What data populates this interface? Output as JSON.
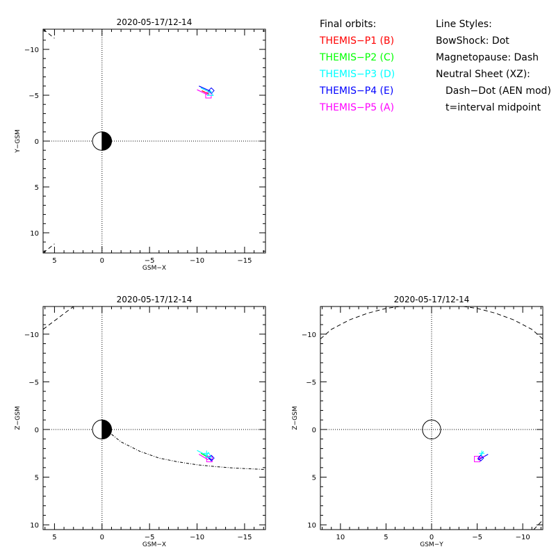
{
  "colors": {
    "P1": "#ff0000",
    "P2": "#00ff00",
    "P3": "#00ffff",
    "P4": "#0000ff",
    "P5": "#ff00ff",
    "axis": "#000000"
  },
  "legend": {
    "orbits_title": "Final orbits:",
    "orbits": [
      {
        "label": "THEMIS−P1 (B)",
        "probe": "P1"
      },
      {
        "label": "THEMIS−P2 (C)",
        "probe": "P2"
      },
      {
        "label": "THEMIS−P3 (D)",
        "probe": "P3"
      },
      {
        "label": "THEMIS−P4 (E)",
        "probe": "P4"
      },
      {
        "label": "THEMIS−P5 (A)",
        "probe": "P5"
      }
    ],
    "styles_title": "Line Styles:",
    "styles": [
      "BowShock: Dot",
      "Magnetopause: Dash",
      "Neutral Sheet (XZ):",
      "Dash−Dot (AEN mod)",
      "t=interval midpoint"
    ]
  },
  "chart_data": [
    {
      "type": "line",
      "id": "xy",
      "title": "2020-05-17/12-14",
      "xlabel": "GSM−X",
      "ylabel": "Y−GSM",
      "xlim": [
        6.2,
        -17.2
      ],
      "ylim": [
        -12.2,
        12.2
      ],
      "xticks": [
        5,
        0,
        -5,
        -10,
        -15
      ],
      "xticklabels": [
        "5",
        "0",
        "−5",
        "−10",
        "−15"
      ],
      "yticks": [
        -10,
        -5,
        0,
        5,
        10
      ],
      "yticklabels": [
        "−10",
        "−5",
        "0",
        "5",
        "10"
      ],
      "earth": "half-filled",
      "magnetopause": [
        {
          "x": [
            6.2,
            5.0
          ],
          "y": [
            -12.2,
            -11.2
          ]
        },
        {
          "x": [
            6.2,
            5.0
          ],
          "y": [
            12.2,
            11.2
          ]
        }
      ],
      "series": [
        {
          "probe": "P4",
          "x": [
            -10.2,
            -11.5
          ],
          "y": [
            -6.0,
            -5.4
          ]
        },
        {
          "probe": "P3",
          "x": [
            -10.4,
            -11.4
          ],
          "y": [
            -5.8,
            -5.3
          ]
        },
        {
          "probe": "P5",
          "x": [
            -10.0,
            -11.2
          ],
          "y": [
            -5.6,
            -5.0
          ]
        },
        {
          "probe": "P1",
          "x": [
            -10.5,
            -11.3
          ],
          "y": [
            -5.5,
            -5.1
          ]
        }
      ],
      "markers": [
        {
          "probe": "P5",
          "shape": "square",
          "x": -11.2,
          "y": -5.0
        },
        {
          "probe": "P4",
          "shape": "diamond",
          "x": -11.5,
          "y": -5.5
        },
        {
          "probe": "P3",
          "shape": "triangle",
          "x": -11.4,
          "y": -5.2
        }
      ]
    },
    {
      "type": "line",
      "id": "xz",
      "title": "2020-05-17/12-14",
      "xlabel": "GSM−X",
      "ylabel": "Z−GSM",
      "xlim": [
        6.2,
        -17.2
      ],
      "ylim": [
        -12.9,
        10.5
      ],
      "xticks": [
        5,
        0,
        -5,
        -10,
        -15
      ],
      "xticklabels": [
        "5",
        "0",
        "−5",
        "−10",
        "−15"
      ],
      "yticks": [
        -10,
        -5,
        0,
        5,
        10
      ],
      "yticklabels": [
        "−10",
        "−5",
        "0",
        "5",
        "10"
      ],
      "earth": "half-filled",
      "neutral_sheet": {
        "x": [
          -1,
          -2,
          -4,
          -6,
          -8,
          -10,
          -12,
          -14,
          -17.2
        ],
        "y": [
          0.5,
          1.3,
          2.3,
          3.0,
          3.4,
          3.7,
          3.9,
          4.05,
          4.2
        ]
      },
      "magnetopause": [
        {
          "x": [
            6.2,
            3.0
          ],
          "y": [
            -10.5,
            -12.9
          ]
        }
      ],
      "series": [
        {
          "probe": "P4",
          "x": [
            -10.6,
            -11.6
          ],
          "y": [
            2.6,
            3.2
          ]
        },
        {
          "probe": "P2",
          "x": [
            -10.4,
            -11.3
          ],
          "y": [
            2.5,
            3.0
          ]
        },
        {
          "probe": "P3",
          "x": [
            -10.0,
            -11.2
          ],
          "y": [
            2.2,
            2.8
          ]
        },
        {
          "probe": "P5",
          "x": [
            -10.2,
            -11.2
          ],
          "y": [
            2.6,
            3.2
          ]
        }
      ],
      "markers": [
        {
          "probe": "P5",
          "shape": "square",
          "x": -11.3,
          "y": 3.1
        },
        {
          "probe": "P4",
          "shape": "diamond",
          "x": -11.5,
          "y": 3.0
        },
        {
          "probe": "P3",
          "shape": "triangle",
          "x": -11.2,
          "y": 2.7
        },
        {
          "probe": "P3",
          "shape": "plus",
          "x": -11.0,
          "y": 2.5
        }
      ]
    },
    {
      "type": "line",
      "id": "yz",
      "title": "2020-05-17/12-14",
      "xlabel": "GSM−Y",
      "ylabel": "Z−GSM",
      "xlim": [
        12.2,
        -12.2
      ],
      "ylim": [
        -12.9,
        10.5
      ],
      "xticks": [
        10,
        5,
        0,
        -5,
        -10
      ],
      "xticklabels": [
        "10",
        "5",
        "0",
        "−5",
        "−10"
      ],
      "yticks": [
        -10,
        -5,
        0,
        5,
        10
      ],
      "yticklabels": [
        "−10",
        "−5",
        "0",
        "5",
        "10"
      ],
      "earth": "outline",
      "magnetopause": [
        {
          "x": [
            12.2,
            11.0,
            9.0,
            7.0,
            5.0,
            3.5
          ],
          "y": [
            -9.5,
            -10.5,
            -11.5,
            -12.2,
            -12.7,
            -12.9
          ]
        },
        {
          "x": [
            -12.2,
            -11.0,
            -9.0,
            -7.0,
            -5.0,
            -3.5
          ],
          "y": [
            -9.5,
            -10.5,
            -11.5,
            -12.2,
            -12.7,
            -12.9
          ]
        },
        {
          "x": [
            -11.2,
            -12.2
          ],
          "y": [
            10.5,
            9.5
          ]
        }
      ],
      "series": [
        {
          "probe": "P4",
          "x": [
            -5.1,
            -6.2
          ],
          "y": [
            3.2,
            2.6
          ]
        },
        {
          "probe": "P3",
          "x": [
            -5.2,
            -5.7
          ],
          "y": [
            2.9,
            2.3
          ]
        },
        {
          "probe": "P5",
          "x": [
            -5.0,
            -5.8
          ],
          "y": [
            3.1,
            2.8
          ]
        }
      ],
      "markers": [
        {
          "probe": "P5",
          "shape": "square",
          "x": -5.0,
          "y": 3.1
        },
        {
          "probe": "P4",
          "shape": "diamond",
          "x": -5.4,
          "y": 3.0
        },
        {
          "probe": "P3",
          "shape": "plus",
          "x": -5.5,
          "y": 2.5
        }
      ]
    }
  ]
}
